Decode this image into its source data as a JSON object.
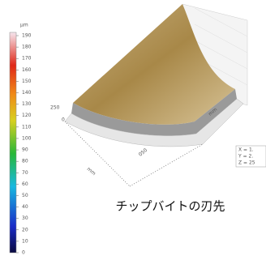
{
  "colorbar": {
    "unit": "μm",
    "range": [
      0,
      190
    ],
    "ticks": [
      0,
      10,
      20,
      30,
      40,
      50,
      60,
      70,
      80,
      90,
      100,
      110,
      120,
      130,
      140,
      150,
      160,
      170,
      180,
      190
    ]
  },
  "axes": {
    "z_labels": [
      "250",
      "0"
    ],
    "x_unit": "mm",
    "x_label": "050",
    "y_unit": "mm"
  },
  "readout": [
    "X = 1.",
    "Y = 2.",
    "Z = 25"
  ],
  "caption": "チップバイトの刃先"
}
